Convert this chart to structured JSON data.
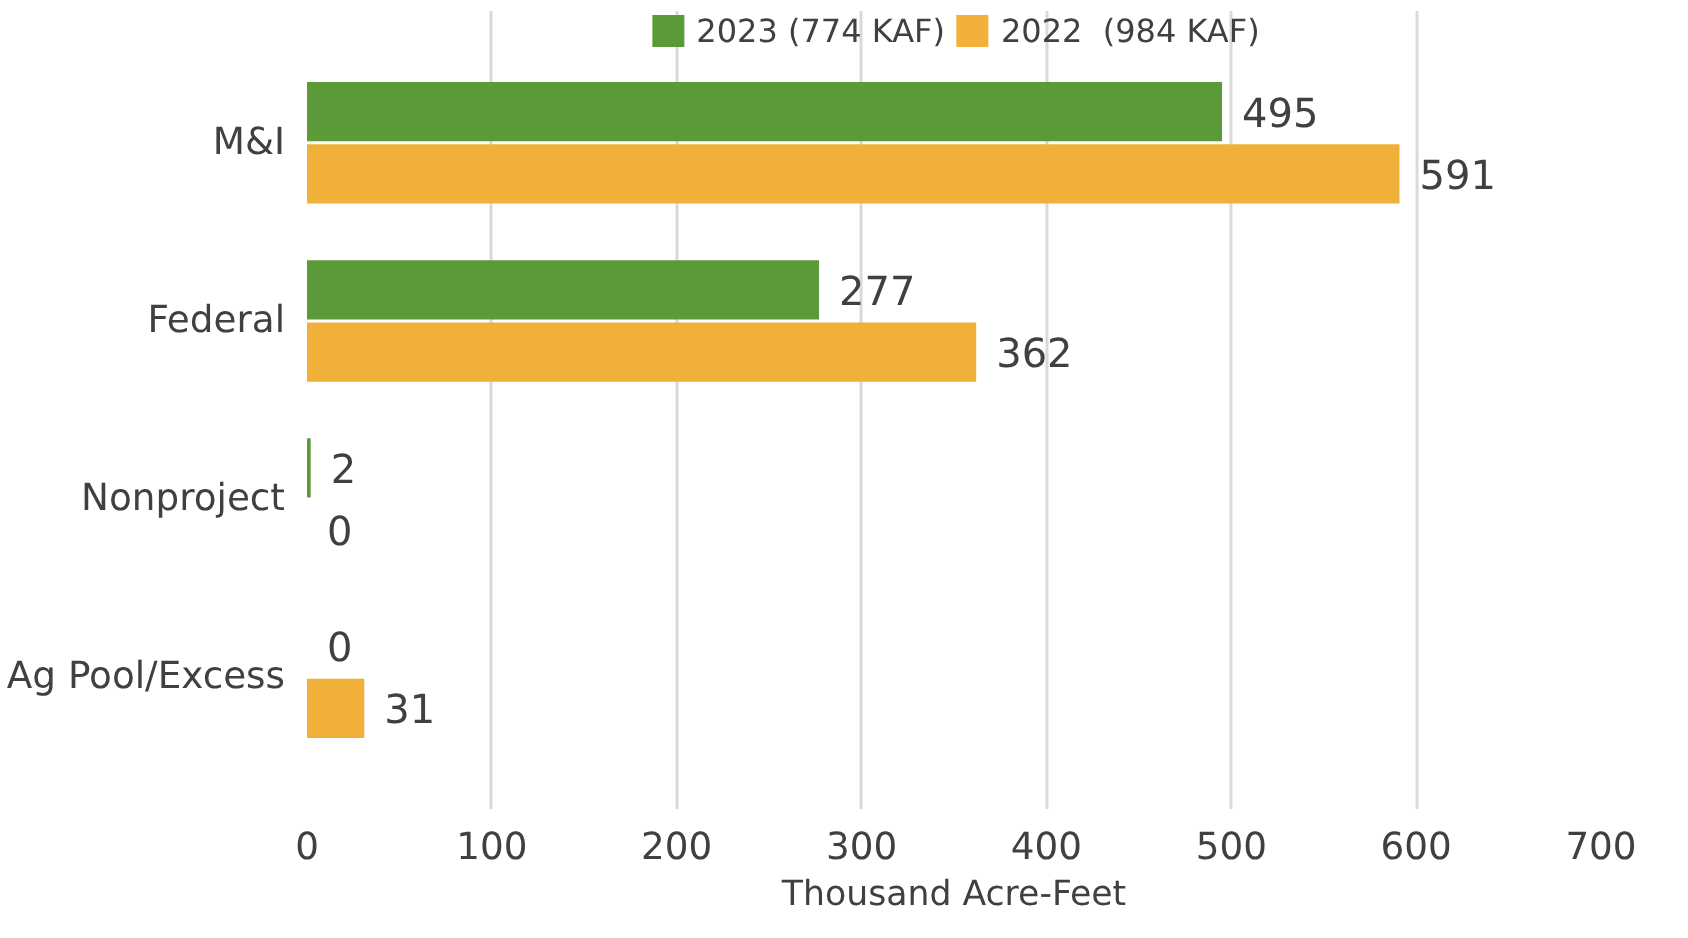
{
  "chart_data": {
    "type": "bar",
    "orientation": "horizontal",
    "categories": [
      "M&I",
      "Federal",
      "Nonproject",
      "Ag Pool/Excess"
    ],
    "series": [
      {
        "name": "2023 (774 KAF)",
        "color": "#5a9a38",
        "values": [
          495,
          277,
          2,
          0
        ]
      },
      {
        "name": "2022  (984 KAF)",
        "color": "#f0b03a",
        "values": [
          591,
          362,
          0,
          31
        ]
      }
    ],
    "xlim": [
      0,
      700
    ],
    "xticks": [
      0,
      100,
      200,
      300,
      400,
      500,
      600,
      700
    ],
    "xlabel": "Thousand Acre-Feet",
    "grid": "x",
    "legend": "top",
    "data_labels": true
  }
}
